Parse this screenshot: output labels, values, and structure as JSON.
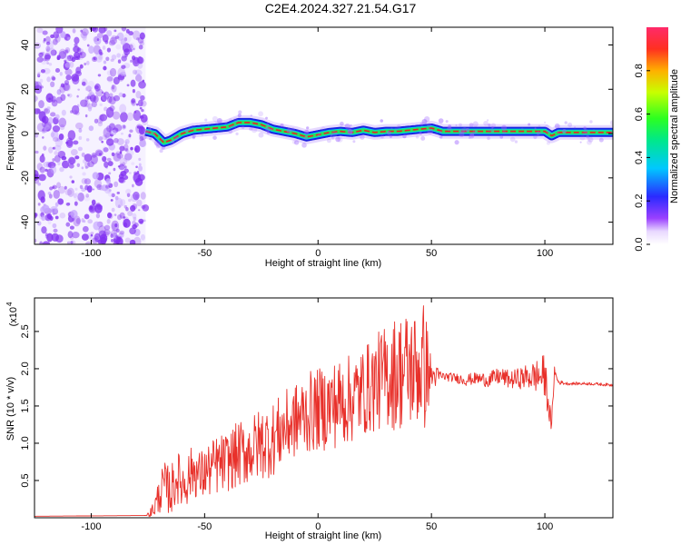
{
  "title": "C2E4.2024.327.21.54.G17",
  "colors": {
    "snr_line": "#e8302a",
    "ribbon_low": "#1a22e0",
    "ribbon_mid": "#27e35a",
    "ribbon_high": "#e8202a",
    "scatter": "#7a22f0"
  },
  "chart_data": [
    {
      "type": "heatmap",
      "xlabel": "Height of straight line (km)",
      "ylabel": "Frequency (Hz)",
      "xlim": [
        -125,
        130
      ],
      "ylim": [
        -50,
        48
      ],
      "x_ticks": [
        -100,
        -50,
        0,
        50,
        100
      ],
      "y_ticks": [
        -40,
        -20,
        0,
        20,
        40
      ],
      "grid": false,
      "noise_region_x": [
        -125,
        -76
      ],
      "signal_track": {
        "x": [
          -76,
          -72,
          -70,
          -68,
          -65,
          -60,
          -55,
          -50,
          -45,
          -40,
          -35,
          -30,
          -25,
          -20,
          -15,
          -10,
          -5,
          0,
          5,
          10,
          15,
          20,
          25,
          30,
          35,
          40,
          45,
          50,
          55,
          60,
          70,
          80,
          90,
          100,
          103,
          106,
          115,
          130
        ],
        "freq": [
          1,
          0,
          -2,
          -4,
          -3,
          0,
          1.5,
          2,
          2.5,
          3,
          5,
          5,
          4,
          2,
          1,
          0,
          -1.5,
          -0.5,
          0.5,
          1,
          0.5,
          1.5,
          0.5,
          1,
          1,
          1.5,
          2,
          2.5,
          1,
          1,
          1,
          1,
          1,
          1,
          -1,
          0.5,
          0.5,
          0.5
        ]
      },
      "colorbar": {
        "label": "Normalized spectral amplitude",
        "ticks": [
          0.0,
          0.2,
          0.4,
          0.6,
          0.8
        ],
        "range": [
          0,
          1
        ]
      }
    },
    {
      "type": "line",
      "xlabel": "Height of straight line (km)",
      "ylabel": "SNR (10 * v/v)",
      "y_multiplier": "(x10",
      "y_multiplier_exp": "4",
      "xlim": [
        -125,
        130
      ],
      "ylim": [
        0,
        2.95
      ],
      "x_ticks": [
        -100,
        -50,
        0,
        50,
        100
      ],
      "y_ticks": [
        0.5,
        1.0,
        1.5,
        2.0,
        2.5
      ],
      "grid": false,
      "series": [
        {
          "x": [
            -125,
            -76,
            -74,
            -72,
            -70,
            -68,
            -65,
            -62,
            -60,
            -58,
            -55,
            -52,
            -50,
            -45,
            -40,
            -35,
            -30,
            -25,
            -20,
            -15,
            -10,
            -5,
            0,
            5,
            10,
            15,
            20,
            25,
            30,
            35,
            40,
            45,
            47,
            50,
            55,
            60,
            65,
            70,
            75,
            80,
            85,
            90,
            95,
            100,
            103,
            104,
            105,
            106,
            110,
            120,
            130
          ],
          "y": [
            0.02,
            0.03,
            0.06,
            0.15,
            0.3,
            0.45,
            0.35,
            0.55,
            0.45,
            0.5,
            0.65,
            0.55,
            0.6,
            0.7,
            0.75,
            0.85,
            0.9,
            1.0,
            1.05,
            1.2,
            1.3,
            1.4,
            1.45,
            1.5,
            1.55,
            1.6,
            1.7,
            1.8,
            1.9,
            1.95,
            2.0,
            2.0,
            2.05,
            1.9,
            1.9,
            1.88,
            1.85,
            1.87,
            1.85,
            1.9,
            1.85,
            1.88,
            1.9,
            1.9,
            1.2,
            1.95,
            1.9,
            1.82,
            1.8,
            1.8,
            1.78
          ],
          "noise_amplitude": [
            0.0,
            0.0,
            0.05,
            0.15,
            0.25,
            0.3,
            0.35,
            0.35,
            0.35,
            0.35,
            0.35,
            0.35,
            0.35,
            0.4,
            0.4,
            0.45,
            0.45,
            0.5,
            0.5,
            0.5,
            0.5,
            0.55,
            0.55,
            0.6,
            0.6,
            0.6,
            0.6,
            0.65,
            0.7,
            0.8,
            0.8,
            0.8,
            0.9,
            0.2,
            0.06,
            0.06,
            0.08,
            0.08,
            0.1,
            0.12,
            0.12,
            0.15,
            0.2,
            0.3,
            0.1,
            0.2,
            0.05,
            0.03,
            0.02,
            0.02,
            0.02
          ]
        }
      ]
    }
  ]
}
